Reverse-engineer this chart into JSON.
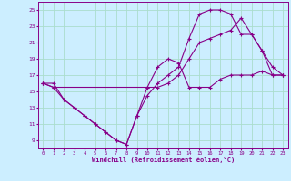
{
  "background_color": "#cceeff",
  "grid_color": "#aaddcc",
  "line_color": "#880088",
  "xlabel": "Windchill (Refroidissement éolien,°C)",
  "xlim": [
    -0.5,
    23.5
  ],
  "ylim": [
    8,
    26
  ],
  "yticks": [
    9,
    11,
    13,
    15,
    17,
    19,
    21,
    23,
    25
  ],
  "xticks": [
    0,
    1,
    2,
    3,
    4,
    5,
    6,
    7,
    8,
    9,
    10,
    11,
    12,
    13,
    14,
    15,
    16,
    17,
    18,
    19,
    20,
    21,
    22,
    23
  ],
  "line1_x": [
    0,
    1,
    2,
    3,
    4,
    5,
    6,
    7,
    8,
    9,
    10,
    11,
    12,
    13,
    14,
    15,
    16,
    17,
    18,
    19,
    20,
    21,
    22,
    23
  ],
  "line1_y": [
    16,
    16,
    14,
    13,
    12,
    11,
    10,
    9,
    8.5,
    12,
    15.5,
    18,
    19,
    18.5,
    15.5,
    15.5,
    15.5,
    16.5,
    17,
    17,
    17,
    17.5,
    17,
    17
  ],
  "line2_x": [
    0,
    1,
    2,
    3,
    4,
    5,
    6,
    7,
    8,
    9,
    10,
    11,
    12,
    13,
    14,
    15,
    16,
    17,
    18,
    19,
    20,
    21,
    22,
    23
  ],
  "line2_y": [
    16,
    15.5,
    14,
    13,
    12,
    11,
    10,
    9,
    8.5,
    12,
    14.5,
    16,
    17,
    18,
    21.5,
    24.5,
    25,
    25,
    24.5,
    22,
    22,
    20,
    17,
    17
  ],
  "line3_x": [
    0,
    1,
    10,
    11,
    12,
    13,
    14,
    15,
    16,
    17,
    18,
    19,
    20,
    21,
    22,
    23
  ],
  "line3_y": [
    16,
    15.5,
    15.5,
    15.5,
    16,
    17,
    19,
    21,
    21.5,
    22,
    22.5,
    24,
    22,
    20,
    18,
    17
  ]
}
